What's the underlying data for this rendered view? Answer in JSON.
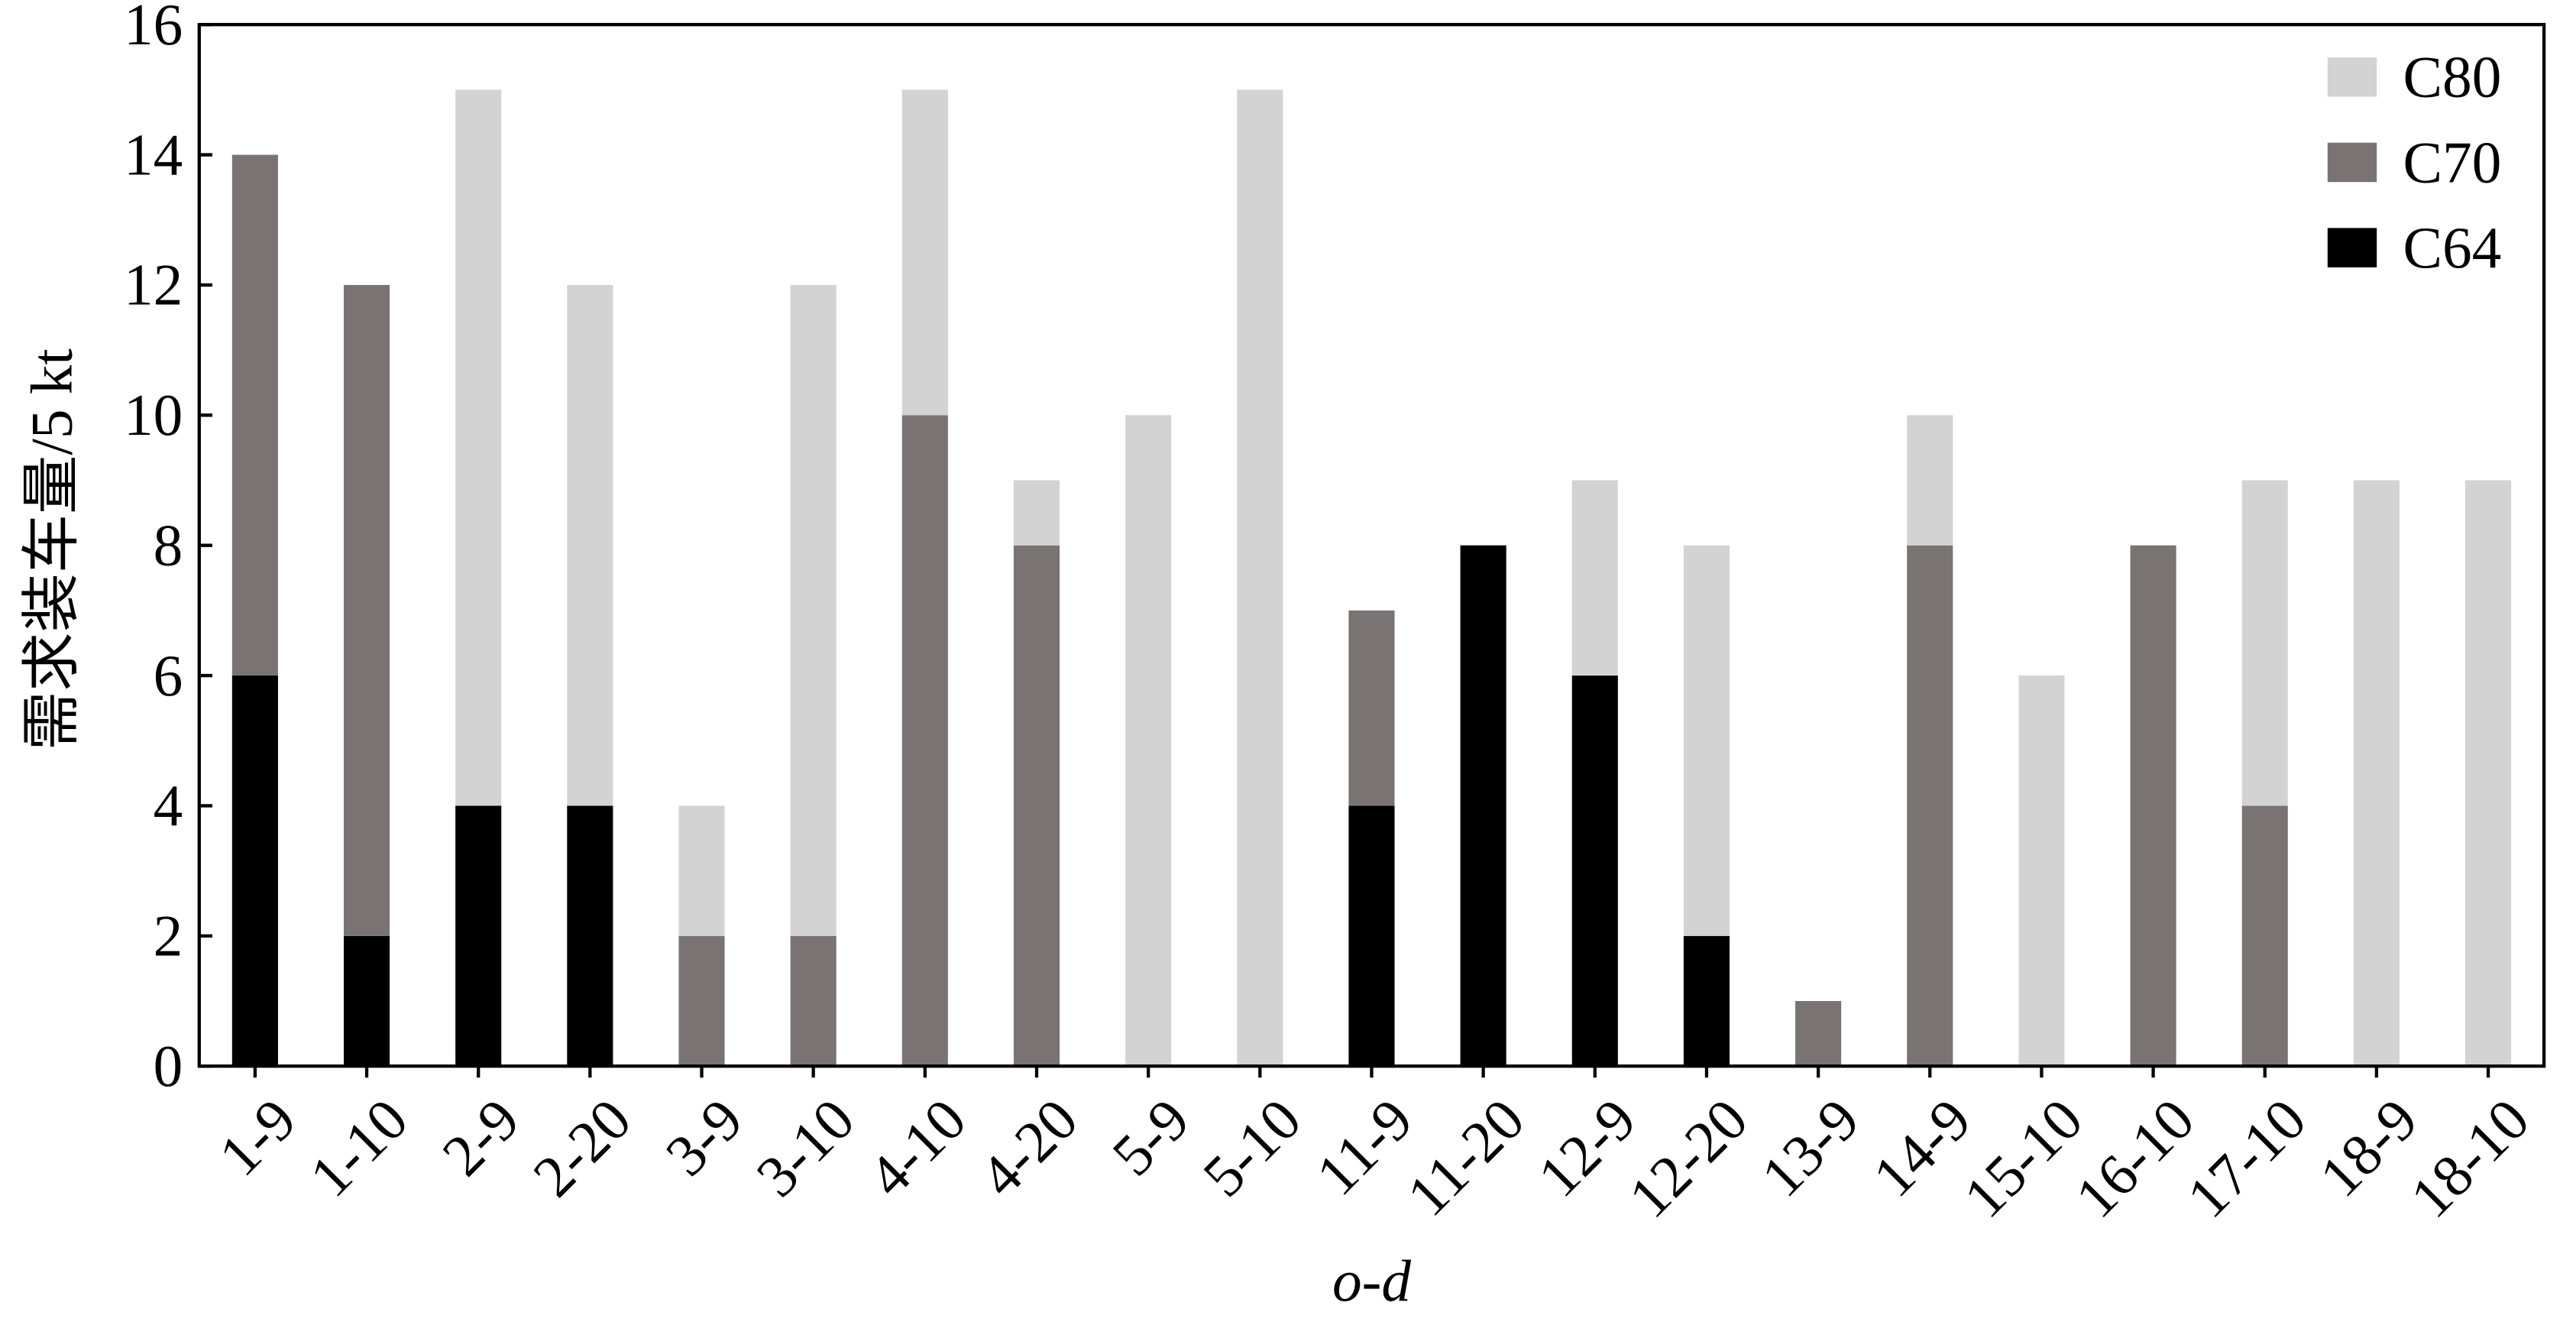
{
  "chart_data": {
    "type": "stacked_bar",
    "x_label": "o-d",
    "y_label": "需求装车量/5 kt",
    "categories": [
      "1-9",
      "1-10",
      "2-9",
      "2-20",
      "3-9",
      "3-10",
      "4-10",
      "4-20",
      "5-9",
      "5-10",
      "11-9",
      "11-20",
      "12-9",
      "12-20",
      "13-9",
      "14-9",
      "15-10",
      "16-10",
      "17-10",
      "18-9",
      "18-10"
    ],
    "series": [
      {
        "name": "C64",
        "color": "#000000",
        "values": [
          6,
          2,
          4,
          4,
          0,
          0,
          0,
          0,
          0,
          0,
          4,
          8,
          6,
          2,
          0,
          0,
          0,
          0,
          0,
          0,
          0
        ]
      },
      {
        "name": "C70",
        "color": "#7a7374",
        "values": [
          8,
          10,
          0,
          0,
          2,
          2,
          10,
          8,
          0,
          0,
          3,
          0,
          0,
          0,
          1,
          8,
          0,
          8,
          4,
          0,
          0
        ]
      },
      {
        "name": "C80",
        "color": "#d3d3d3",
        "values": [
          0,
          0,
          11,
          8,
          2,
          10,
          5,
          1,
          10,
          15,
          0,
          0,
          3,
          6,
          0,
          2,
          6,
          0,
          5,
          9,
          9
        ]
      }
    ],
    "ylim": [
      0,
      16
    ],
    "yticks": [
      0,
      2,
      4,
      6,
      8,
      10,
      12,
      14,
      16
    ],
    "legend_position": "upper right"
  }
}
